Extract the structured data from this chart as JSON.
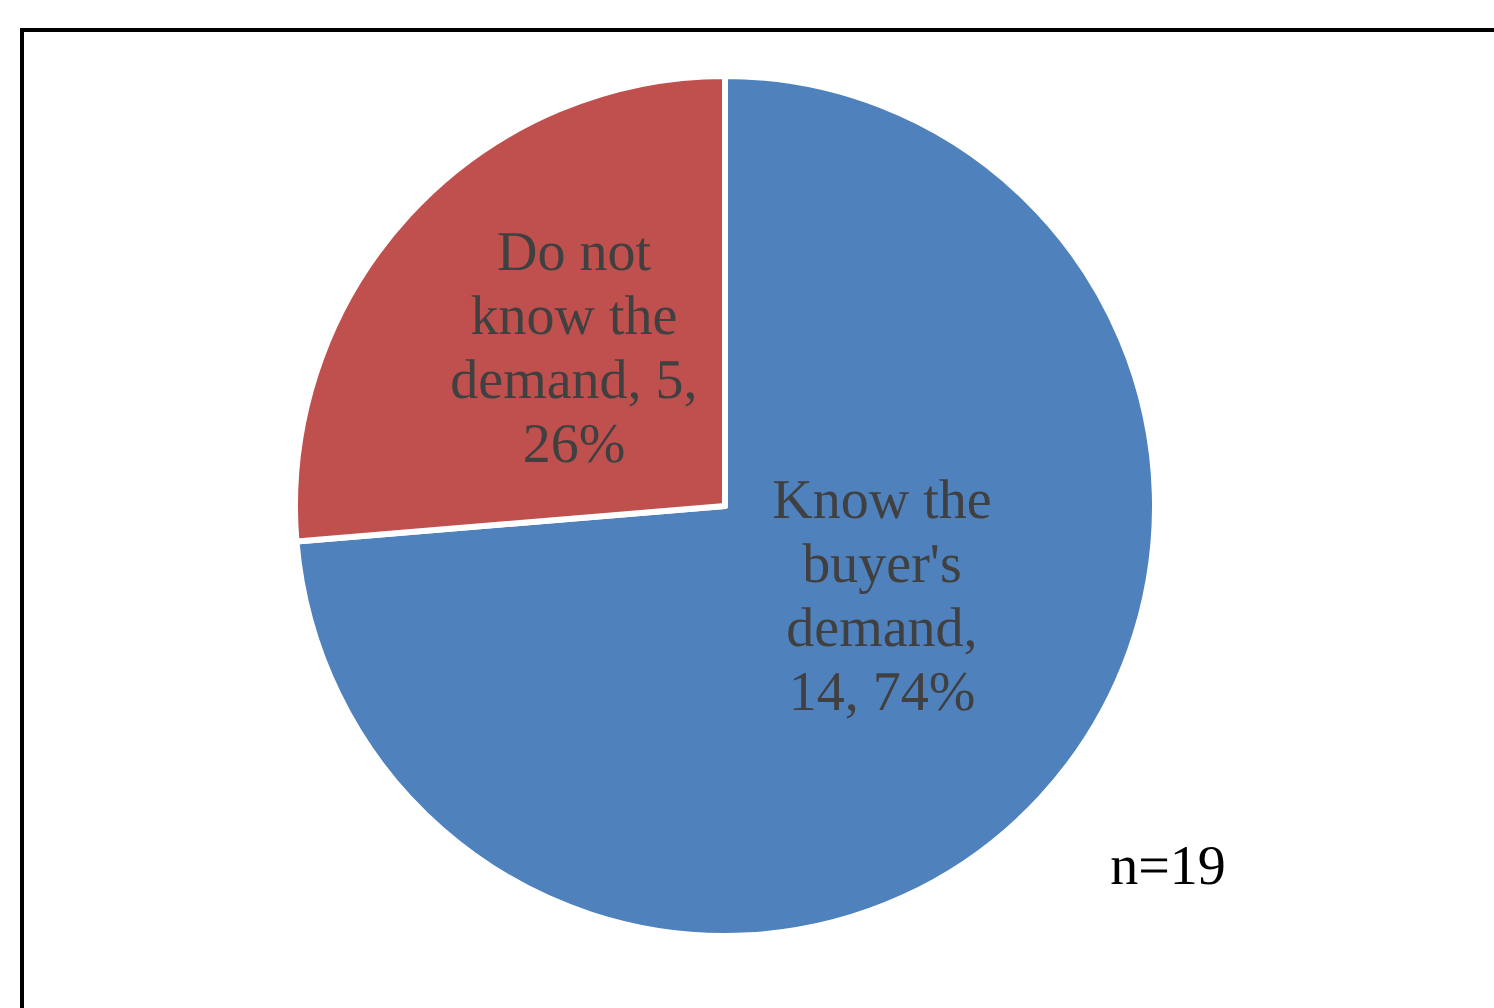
{
  "chart_data": {
    "type": "pie",
    "categories": [
      "Know the buyer's demand",
      "Do not know the demand"
    ],
    "values": [
      14,
      5
    ],
    "colors": [
      "#4f81bd",
      "#c0504d"
    ],
    "value_labels": [
      ", 14, 74%",
      ", 5, 26%"
    ],
    "annotations": [
      "n=19"
    ]
  }
}
